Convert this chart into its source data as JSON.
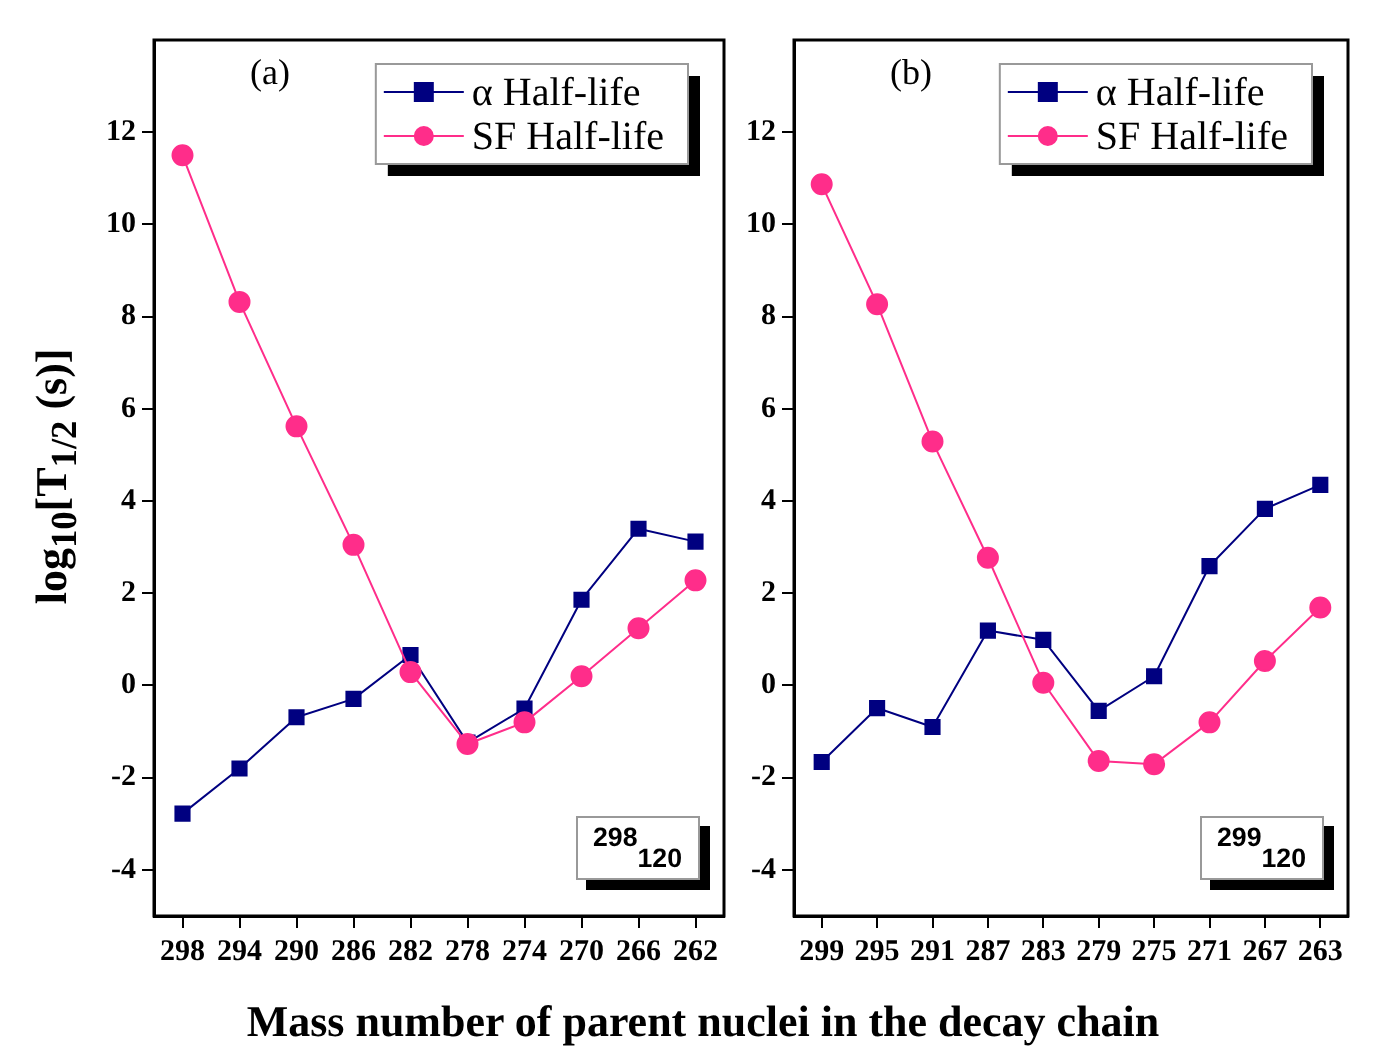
{
  "chart_data": [
    {
      "type": "line",
      "categories": [
        "298",
        "294",
        "290",
        "286",
        "282",
        "278",
        "274",
        "270",
        "266",
        "262"
      ],
      "ylabel": "log$_{10}$[T$_{1/2}$ (s)]",
      "xlabel": "Mass number of parent nuclei in the decay chain",
      "annotations": [
        "(a)",
        "$^{298}$$_{120}$"
      ],
      "ylim": [
        -5,
        14
      ],
      "yticks": [
        -4,
        -2,
        0,
        2,
        4,
        6,
        8,
        10,
        12
      ],
      "grid": false,
      "legend": "top right",
      "series": [
        {
          "name": "α Half-life",
          "color": "#000080",
          "marker": "square",
          "values": [
            -2.78,
            -1.8,
            -0.69,
            -0.29,
            0.66,
            -1.24,
            -0.5,
            1.86,
            3.4,
            3.12
          ]
        },
        {
          "name": "SF Half-life",
          "color": "#ff2d8a",
          "marker": "circle",
          "values": [
            11.5,
            8.32,
            5.62,
            3.05,
            0.29,
            -1.27,
            -0.8,
            0.2,
            1.24,
            2.28
          ]
        }
      ]
    },
    {
      "type": "line",
      "categories": [
        "299",
        "295",
        "291",
        "287",
        "283",
        "279",
        "275",
        "271",
        "267",
        "263"
      ],
      "annotations": [
        "(b)",
        "$^{299}$$_{120}$"
      ],
      "ylim": [
        -5,
        14
      ],
      "yticks": [
        -4,
        -2,
        0,
        2,
        4,
        6,
        8,
        10,
        12
      ],
      "grid": false,
      "legend": "top right",
      "series": [
        {
          "name": "α Half-life",
          "color": "#000080",
          "marker": "square",
          "values": [
            -1.66,
            -0.49,
            -0.9,
            1.19,
            0.99,
            -0.55,
            0.2,
            2.59,
            3.83,
            4.35
          ]
        },
        {
          "name": "SF Half-life",
          "color": "#ff2d8a",
          "marker": "circle",
          "values": [
            10.87,
            8.27,
            5.29,
            2.77,
            0.06,
            -1.64,
            -1.71,
            -0.8,
            0.53,
            1.69
          ]
        }
      ]
    }
  ]
}
